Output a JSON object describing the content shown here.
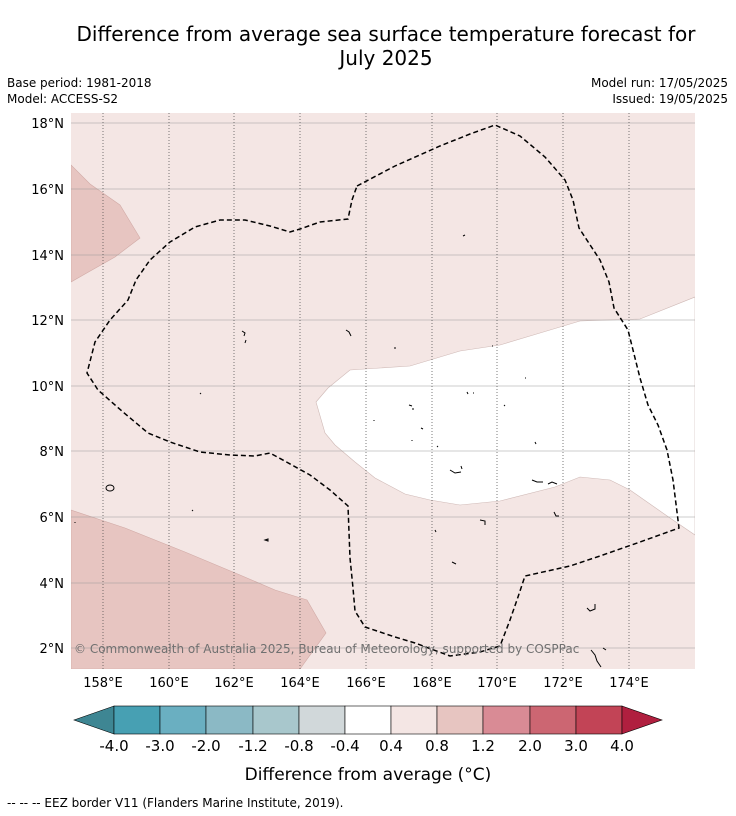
{
  "title_line1": "Difference from average sea surface temperature forecast for",
  "title_line2": "July 2025",
  "meta_left": {
    "base_period": "Base period: 1981-2018",
    "model": "Model: ACCESS-S2"
  },
  "meta_right": {
    "model_run": "Model run: 17/05/2025",
    "issued": "Issued: 19/05/2025"
  },
  "copyright": "© Commonwealth of Australia 2025, Bureau of Meteorology, supported by COSPPac",
  "lat_labels": [
    "18°N",
    "16°N",
    "14°N",
    "12°N",
    "10°N",
    "8°N",
    "6°N",
    "4°N",
    "2°N"
  ],
  "lon_labels": [
    "158°E",
    "160°E",
    "162°E",
    "164°E",
    "166°E",
    "168°E",
    "170°E",
    "172°E",
    "174°E"
  ],
  "colorbar": {
    "label": "Difference from average (°C)",
    "ticks": [
      "-4.0",
      "-3.0",
      "-2.0",
      "-1.2",
      "-0.8",
      "-0.4",
      "0.4",
      "0.8",
      "1.2",
      "2.0",
      "3.0",
      "4.0"
    ],
    "colors": {
      "lt_-4": "#3e8693",
      "-4_-3": "#47a0b3",
      "-3_-2": "#6aafc1",
      "-2_-1.2": "#8bb9c5",
      "-1.2_-0.8": "#a8c7cc",
      "-0.8_-0.4": "#d1d8da",
      "-0.4_0.4": "#ffffff",
      "0.4_0.8": "#f4e6e4",
      "0.8_1.2": "#e7c5c1",
      "1.2_2.0": "#d98b95",
      "2.0_3.0": "#cc6672",
      "3.0_4.0": "#c24456",
      "gt_4": "#b01f3f"
    }
  },
  "map_colors": {
    "light_pink": "#f4e6e4",
    "medium_pink": "#e7c5c1",
    "neutral": "#ffffff"
  },
  "footer": "--  --  -- EEZ border V11 (Flanders Marine Institute, 2019)."
}
